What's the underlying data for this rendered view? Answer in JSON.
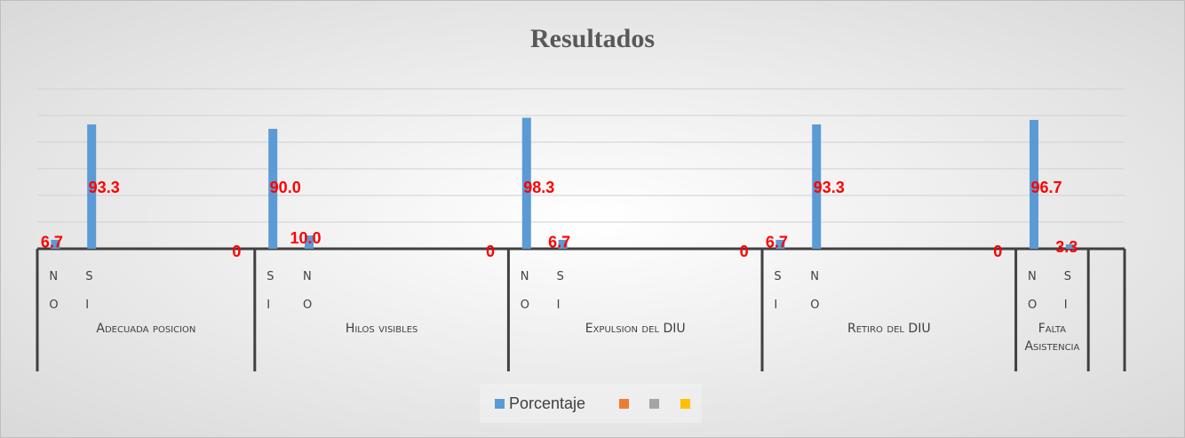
{
  "chart_data": {
    "type": "grouped-bar",
    "title": "Resultados",
    "groups": [
      {
        "name": "Adecuada posicion",
        "categories": [
          "NO",
          "SI",
          null,
          null,
          null,
          null
        ],
        "values": [
          6.7,
          93.3,
          null,
          null,
          null,
          0
        ],
        "value_labels": [
          "6.7",
          "93.3",
          null,
          null,
          null,
          "0"
        ]
      },
      {
        "name": "Hilos visibles",
        "categories": [
          "SI",
          "NO",
          null,
          null,
          null,
          null,
          null
        ],
        "values": [
          90,
          10,
          null,
          null,
          null,
          null,
          0
        ],
        "value_labels": [
          "90.0",
          "10.0",
          null,
          null,
          null,
          null,
          "0"
        ]
      },
      {
        "name": "Expulsion del DIU",
        "categories": [
          "NO",
          "SI",
          null,
          null,
          null,
          null,
          null
        ],
        "values": [
          98.3,
          6.7,
          null,
          null,
          null,
          null,
          0
        ],
        "value_labels": [
          "98.3",
          "6.7",
          null,
          null,
          null,
          null,
          "0"
        ]
      },
      {
        "name": "Retiro del DIU",
        "categories": [
          "SI",
          "NO",
          null,
          null,
          null,
          null,
          null
        ],
        "values": [
          6.7,
          93.3,
          null,
          null,
          null,
          null,
          0
        ],
        "value_labels": [
          "6.7",
          "93.3",
          null,
          null,
          null,
          null,
          "0"
        ]
      },
      {
        "name": "Falta Asistencia",
        "categories": [
          "NO",
          "SI"
        ],
        "values": [
          96.7,
          3.3
        ],
        "value_labels": [
          "96.7",
          "3.3"
        ]
      }
    ],
    "series_name": "Porcentaje",
    "color": "#5b9bd5",
    "label_color": "#ff0000",
    "ylim": [
      0,
      120
    ],
    "yticks": [
      0,
      20,
      40,
      60,
      80,
      100,
      120
    ],
    "grid": true,
    "legend": "bottom"
  }
}
